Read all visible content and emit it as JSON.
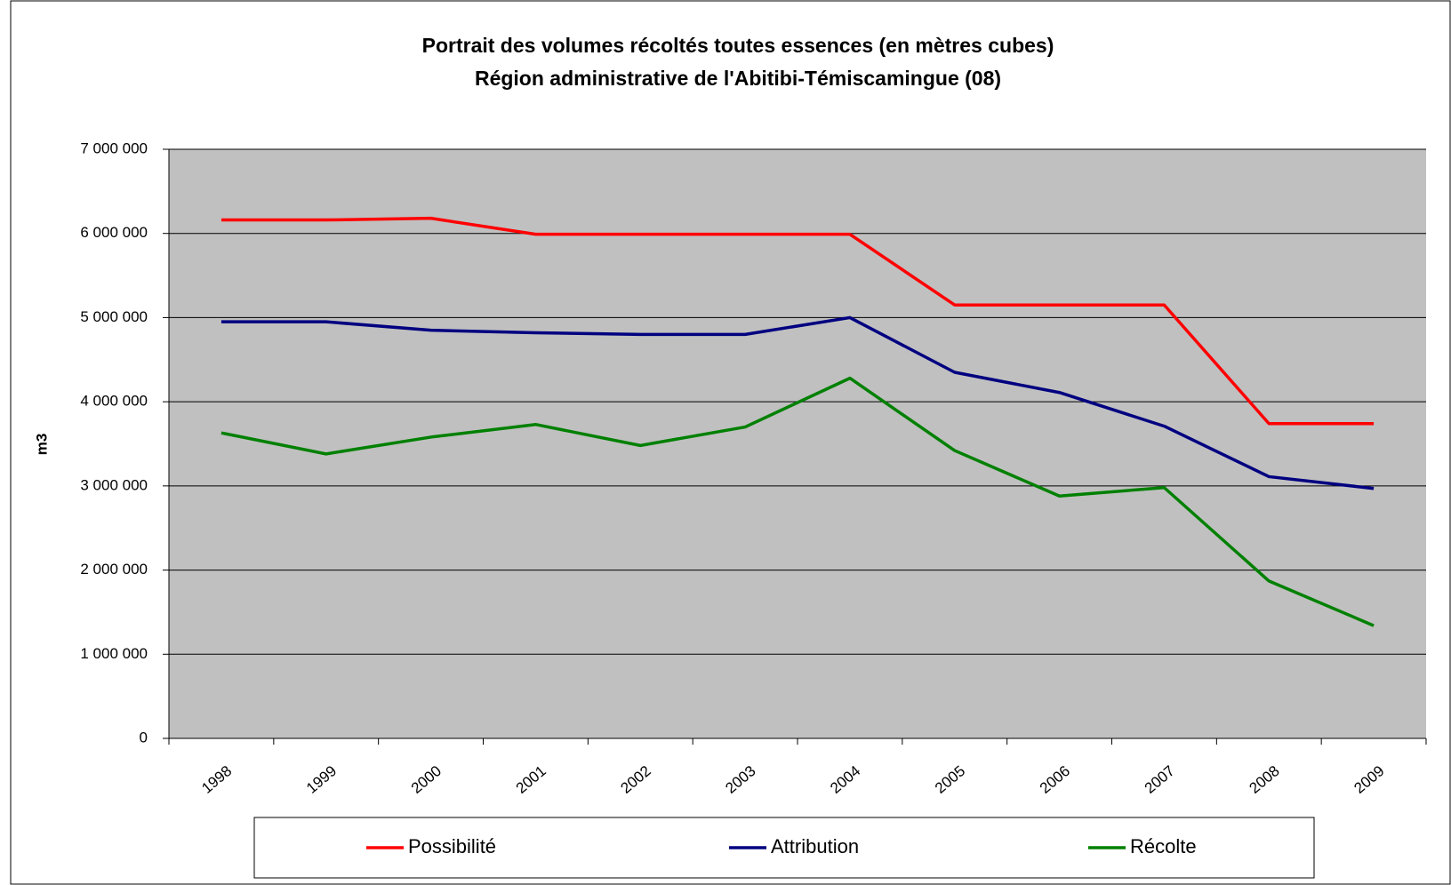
{
  "chart_data": {
    "type": "line",
    "title": "Portrait des volumes récoltés toutes essences (en mètres cubes)",
    "subtitle": "Région administrative de l'Abitibi-Témiscamingue (08)",
    "y_label": "m3",
    "categories": [
      "1998",
      "1999",
      "2000",
      "2001",
      "2002",
      "2003",
      "2004",
      "2005",
      "2006",
      "2007",
      "2008",
      "2009"
    ],
    "series": [
      {
        "name": "Possibilité",
        "color": "#ff0000",
        "values": [
          6160000,
          6160000,
          6180000,
          5990000,
          5990000,
          5990000,
          5990000,
          5150000,
          5150000,
          5150000,
          3740000,
          3740000
        ]
      },
      {
        "name": "Attribution",
        "color": "#000080",
        "values": [
          4950000,
          4950000,
          4850000,
          4820000,
          4800000,
          4800000,
          5000000,
          4350000,
          4110000,
          3710000,
          3110000,
          2970000
        ]
      },
      {
        "name": "Récolte",
        "color": "#008000",
        "values": [
          3630000,
          3380000,
          3580000,
          3730000,
          3480000,
          3700000,
          4280000,
          3420000,
          2880000,
          2980000,
          1870000,
          1340000
        ]
      }
    ],
    "ylim": [
      0,
      7000000
    ],
    "yticks": [
      0,
      {
        "value": 1000000,
        "label": "1 000 000"
      },
      {
        "value": 2000000,
        "label": "2 000 000"
      },
      {
        "value": 3000000,
        "label": "3 000 000"
      },
      {
        "value": 4000000,
        "label": "4 000 000"
      },
      {
        "value": 5000000,
        "label": "5 000 000"
      },
      {
        "value": 6000000,
        "label": "6 000 000"
      },
      {
        "value": 7000000,
        "label": "7 000 000"
      }
    ],
    "grid": true,
    "legend": "bottom"
  }
}
